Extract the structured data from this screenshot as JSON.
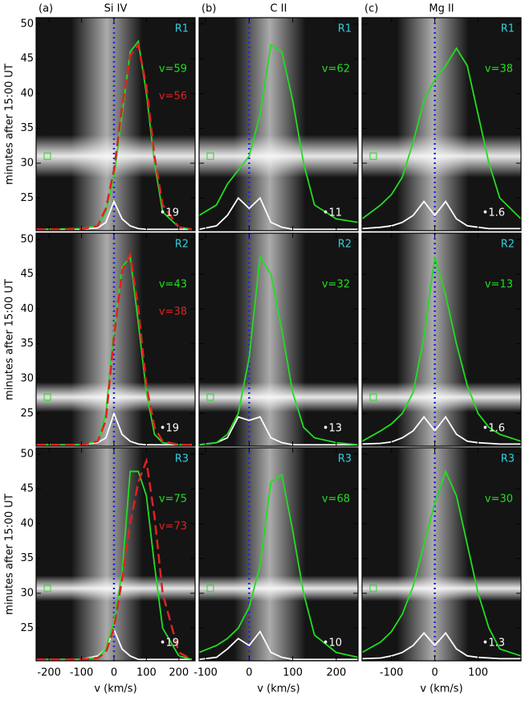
{
  "chart_data": [
    {
      "type": "line",
      "label": "(a)",
      "title": "Si IV",
      "ylabel": "minutes after 15:00 UT",
      "region": "R1",
      "corner_text": "•19",
      "x": [
        -240,
        -100,
        -50,
        -25,
        0,
        25,
        50,
        75,
        100,
        125,
        150,
        200,
        240
      ],
      "xlim": [
        -240,
        250
      ],
      "xticks": [
        -200,
        -100,
        0,
        100,
        200
      ],
      "ylim": [
        20.3,
        50.9
      ],
      "yticks": [
        25,
        30,
        35,
        40,
        45,
        50
      ],
      "vline": 0,
      "vline_color": "#2222ee",
      "series": [
        {
          "color": "#ffffff",
          "values": [
            20.5,
            20.5,
            20.7,
            21.5,
            24.5,
            22,
            21,
            20.6,
            20.5,
            20.5,
            20.5,
            20.5,
            20.5
          ]
        },
        {
          "color": "#22dd22",
          "label": "v=59",
          "values": [
            20.5,
            20.6,
            21,
            23,
            28,
            37,
            46,
            47.5,
            40,
            30,
            23,
            20.8,
            20.5
          ]
        },
        {
          "color": "#dd2222",
          "dash": true,
          "label": "v=56",
          "values": [
            20.5,
            20.5,
            21,
            23.5,
            29,
            38,
            45.5,
            47,
            41,
            31,
            24,
            20.8,
            20.5
          ]
        }
      ]
    },
    {
      "type": "line",
      "label": "(b)",
      "title": "C II",
      "region": "R1",
      "corner_text": "•11",
      "x": [
        -115,
        -75,
        -50,
        -25,
        0,
        25,
        50,
        75,
        100,
        125,
        150,
        200,
        250
      ],
      "xlim": [
        -115,
        250
      ],
      "xticks": [
        -100,
        0,
        100,
        200
      ],
      "ylim": [
        20.3,
        50.9
      ],
      "yticks": [
        25,
        30,
        35,
        40,
        45,
        50
      ],
      "vline": 0,
      "vline_color": "#2222ee",
      "series": [
        {
          "color": "#ffffff",
          "values": [
            20.5,
            21,
            22.5,
            25,
            23.5,
            25,
            21.5,
            20.8,
            20.5,
            20.5,
            20.5,
            20.5,
            20.5
          ]
        },
        {
          "color": "#22dd22",
          "label": "v=62",
          "values": [
            22.5,
            24,
            27,
            29,
            31,
            37,
            47,
            46,
            39,
            30,
            24,
            22,
            21.5
          ]
        }
      ]
    },
    {
      "type": "line",
      "label": "(c)",
      "title": "Mg II",
      "region": "R1",
      "corner_text": "•1.6",
      "x": [
        -168,
        -125,
        -100,
        -75,
        -50,
        -25,
        0,
        25,
        50,
        75,
        100,
        125,
        150,
        199
      ],
      "xlim": [
        -168,
        199
      ],
      "xticks": [
        -100,
        0,
        100
      ],
      "ylim": [
        20.3,
        50.9
      ],
      "yticks": [
        25,
        30,
        35,
        40,
        45,
        50
      ],
      "vline": 0,
      "vline_color": "#2222ee",
      "series": [
        {
          "color": "#ffffff",
          "values": [
            20.6,
            20.8,
            21,
            21.5,
            22.5,
            24.5,
            22.5,
            24.5,
            22,
            21,
            20.8,
            20.6,
            20.6,
            20.6
          ]
        },
        {
          "color": "#22dd22",
          "label": "v=38",
          "values": [
            22,
            24,
            25.5,
            28,
            33,
            39,
            42,
            44,
            46.5,
            44,
            37,
            30,
            25,
            22
          ]
        }
      ]
    },
    {
      "type": "line",
      "ylabel": "minutes after 15:00 UT",
      "region": "R2",
      "corner_text": "•19",
      "x": [
        -240,
        -100,
        -50,
        -25,
        0,
        25,
        50,
        75,
        100,
        125,
        150,
        200,
        240
      ],
      "xlim": [
        -240,
        250
      ],
      "xticks": [
        -200,
        -100,
        0,
        100,
        200
      ],
      "ylim": [
        20.3,
        50.9
      ],
      "yticks": [
        25,
        30,
        35,
        40,
        45,
        50
      ],
      "vline": 0,
      "vline_color": "#2222ee",
      "series": [
        {
          "color": "#ffffff",
          "values": [
            20.5,
            20.5,
            20.8,
            21.5,
            25,
            22,
            21,
            20.6,
            20.5,
            20.5,
            20.5,
            20.5,
            20.5
          ]
        },
        {
          "color": "#22dd22",
          "label": "v=43",
          "values": [
            20.5,
            20.5,
            21,
            25,
            37,
            46,
            47.5,
            38,
            28,
            22,
            20.8,
            20.5,
            20.5
          ]
        },
        {
          "color": "#dd2222",
          "dash": true,
          "label": "v=38",
          "values": [
            20.5,
            20.5,
            21,
            24,
            36,
            45.5,
            47.8,
            40,
            29,
            23,
            21,
            20.5,
            20.5
          ]
        }
      ]
    },
    {
      "type": "line",
      "region": "R2",
      "corner_text": "•13",
      "x": [
        -115,
        -75,
        -50,
        -25,
        0,
        25,
        50,
        75,
        100,
        125,
        150,
        200,
        250
      ],
      "xlim": [
        -115,
        250
      ],
      "xticks": [
        -100,
        0,
        100,
        200
      ],
      "ylim": [
        20.3,
        50.9
      ],
      "yticks": [
        25,
        30,
        35,
        40,
        45,
        50
      ],
      "vline": 0,
      "vline_color": "#2222ee",
      "series": [
        {
          "color": "#ffffff",
          "values": [
            20.5,
            20.8,
            21.5,
            24.5,
            24,
            24.5,
            21.5,
            20.8,
            20.5,
            20.5,
            20.5,
            20.5,
            20.5
          ]
        },
        {
          "color": "#22dd22",
          "label": "v=32",
          "values": [
            20.5,
            20.8,
            22,
            25,
            33,
            47.5,
            45,
            37,
            28,
            23,
            21.5,
            20.8,
            20.5
          ]
        }
      ]
    },
    {
      "type": "line",
      "region": "R2",
      "corner_text": "•1.6",
      "x": [
        -168,
        -125,
        -100,
        -75,
        -50,
        -25,
        0,
        25,
        50,
        75,
        100,
        125,
        150,
        199
      ],
      "xlim": [
        -168,
        199
      ],
      "xticks": [
        -100,
        0,
        100
      ],
      "ylim": [
        20.3,
        50.9
      ],
      "yticks": [
        25,
        30,
        35,
        40,
        45,
        50
      ],
      "vline": 0,
      "vline_color": "#2222ee",
      "series": [
        {
          "color": "#ffffff",
          "values": [
            20.6,
            20.7,
            20.9,
            21.5,
            22.5,
            24.5,
            22.5,
            24.5,
            22,
            21,
            20.8,
            20.7,
            20.6,
            20.6
          ]
        },
        {
          "color": "#22dd22",
          "label": "v=13",
          "values": [
            21,
            22.5,
            23.5,
            25,
            28,
            36,
            47.5,
            42,
            35,
            29,
            25,
            23,
            22,
            21
          ]
        }
      ]
    },
    {
      "type": "line",
      "ylabel": "minutes after 15:00 UT",
      "xlabel": "v (km/s)",
      "region": "R3",
      "corner_text": "•19",
      "x": [
        -240,
        -100,
        -50,
        -25,
        0,
        25,
        50,
        75,
        100,
        125,
        150,
        200,
        240
      ],
      "xlim": [
        -240,
        250
      ],
      "xticks": [
        -200,
        -100,
        0,
        100,
        200
      ],
      "ylim": [
        20.3,
        50.9
      ],
      "yticks": [
        25,
        30,
        35,
        40,
        45,
        50
      ],
      "vline": 0,
      "vline_color": "#2222ee",
      "series": [
        {
          "color": "#ffffff",
          "values": [
            20.5,
            20.5,
            21,
            22,
            24.8,
            22,
            21,
            20.5,
            20.5,
            20.5,
            20.5,
            20.5,
            20.5
          ]
        },
        {
          "color": "#22dd22",
          "label": "v=75",
          "values": [
            20.5,
            20.5,
            20.8,
            22,
            26,
            33,
            47.5,
            47.5,
            44,
            34,
            25,
            21,
            20.5
          ]
        },
        {
          "color": "#dd2222",
          "dash": true,
          "label": "v=73",
          "values": [
            20.5,
            20.5,
            20.7,
            21.5,
            25,
            32,
            40,
            46,
            49,
            41,
            30,
            21.5,
            20.5
          ]
        }
      ]
    },
    {
      "type": "line",
      "xlabel": "v (km/s)",
      "region": "R3",
      "corner_text": "•10",
      "x": [
        -115,
        -75,
        -50,
        -25,
        0,
        25,
        50,
        75,
        100,
        125,
        150,
        200,
        250
      ],
      "xlim": [
        -115,
        250
      ],
      "xticks": [
        -100,
        0,
        100,
        200
      ],
      "ylim": [
        20.3,
        50.9
      ],
      "yticks": [
        25,
        30,
        35,
        40,
        45,
        50
      ],
      "vline": 0,
      "vline_color": "#2222ee",
      "series": [
        {
          "color": "#ffffff",
          "values": [
            20.5,
            20.8,
            22,
            23.5,
            22.5,
            24.5,
            21.5,
            20.8,
            20.5,
            20.5,
            20.5,
            20.5,
            20.5
          ]
        },
        {
          "color": "#22dd22",
          "label": "v=68",
          "values": [
            21.5,
            22.5,
            23.5,
            25,
            28,
            34,
            46,
            47,
            39,
            30,
            24,
            21.5,
            20.8
          ]
        }
      ]
    },
    {
      "type": "line",
      "xlabel": "v (km/s)",
      "region": "R3",
      "corner_text": "•1.3",
      "x": [
        -168,
        -125,
        -100,
        -75,
        -50,
        -25,
        0,
        25,
        50,
        75,
        100,
        125,
        150,
        199
      ],
      "xlim": [
        -168,
        199
      ],
      "xticks": [
        -100,
        0,
        100
      ],
      "ylim": [
        20.3,
        50.9
      ],
      "yticks": [
        25,
        30,
        35,
        40,
        45,
        50
      ],
      "vline": 0,
      "vline_color": "#2222ee",
      "series": [
        {
          "color": "#ffffff",
          "values": [
            20.6,
            20.7,
            21,
            21.5,
            22.5,
            24.3,
            22.5,
            24.3,
            22,
            21,
            20.8,
            20.7,
            20.6,
            20.6
          ]
        },
        {
          "color": "#22dd22",
          "label": "v=30",
          "values": [
            21.5,
            23,
            24.5,
            27,
            31,
            37,
            43,
            47.5,
            44,
            37,
            30,
            25,
            22,
            21
          ]
        }
      ]
    }
  ]
}
